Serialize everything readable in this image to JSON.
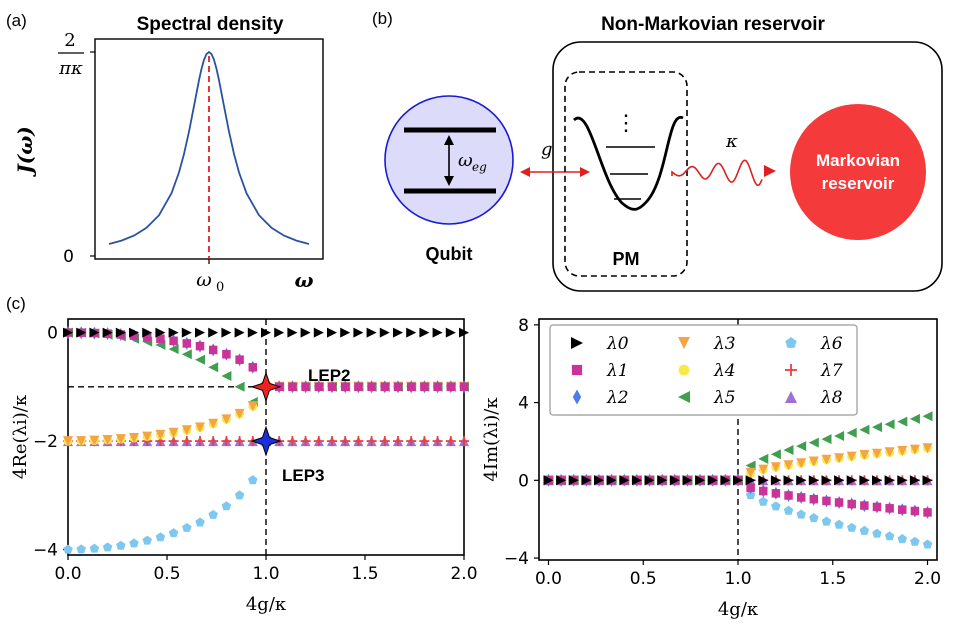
{
  "panels": {
    "a": {
      "label": "(a)",
      "title": "Spectral density",
      "ylabel": "J(ω)",
      "ytick_top_num": "2",
      "ytick_top_den": "πκ",
      "ytick_zero": "0",
      "xtick_center": "ω",
      "xtick_center_sub": "0",
      "xlabel": "ω"
    },
    "b": {
      "label": "(b)",
      "title": "Non-Markovian reservoir",
      "qubit_label": "Qubit",
      "qubit_freq": "ω",
      "qubit_freq_sub": "eg",
      "coupling": "g",
      "decay": "κ",
      "pm_label": "PM",
      "pm_dots": "⋮",
      "markov_line1": "Markovian",
      "markov_line2": "reservoir"
    },
    "c": {
      "label": "(c)",
      "lep2": "LEP2",
      "lep3": "LEP3"
    }
  },
  "colors": {
    "lambda0": "#000000",
    "lambda1": "#cc3399",
    "lambda2": "#4a7fe6",
    "lambda3": "#f5a442",
    "lambda4": "#f7e94a",
    "lambda5": "#3f9e4f",
    "lambda6": "#7ec8f0",
    "lambda7": "#e8403c",
    "lambda8": "#a070d8",
    "curve_a": "#2a52a3",
    "qubit_fill": "#dcdcfa",
    "qubit_edge": "#1a1ad6",
    "markov_fill": "#f43a3a",
    "arrow_red": "#e02020"
  },
  "chart_data": [
    {
      "type": "line",
      "panel": "a",
      "title": "Spectral density",
      "ylabel": "J(ω)",
      "xlabel": "ω",
      "x": [
        -4,
        -3.5,
        -3,
        -2.5,
        -2,
        -1.5,
        -1.2,
        -1,
        -0.8,
        -0.6,
        -0.4,
        -0.3,
        -0.2,
        -0.1,
        0,
        0.1,
        0.2,
        0.3,
        0.4,
        0.6,
        0.8,
        1,
        1.2,
        1.5,
        2,
        2.5,
        3,
        3.5,
        4
      ],
      "y": [
        0.0588,
        0.0755,
        0.1,
        0.138,
        0.2,
        0.308,
        0.41,
        0.5,
        0.61,
        0.735,
        0.862,
        0.917,
        0.962,
        0.99,
        1.0,
        0.99,
        0.962,
        0.917,
        0.862,
        0.735,
        0.61,
        0.5,
        0.41,
        0.308,
        0.2,
        0.138,
        0.1,
        0.0755,
        0.0588
      ],
      "y_unit_note": "J(ω) in units of 2/(πκ); x in units of κ/2 relative to ω0",
      "marker_line": "ω0"
    },
    {
      "type": "scatter",
      "panel": "c-left",
      "xlabel": "4g/κ",
      "ylabel": "4Re(λi)/κ",
      "xlim": [
        0,
        2.0
      ],
      "ylim": [
        -4.1,
        0.25
      ],
      "xticks": [
        "0.0",
        "0.5",
        "1.0",
        "1.5",
        "2.0"
      ],
      "yticks": [
        "0",
        "−2",
        "−4"
      ],
      "x": [
        0.0,
        0.0667,
        0.1333,
        0.2,
        0.2667,
        0.3333,
        0.4,
        0.4667,
        0.5333,
        0.6,
        0.6667,
        0.7333,
        0.8,
        0.8667,
        0.9333,
        1.0,
        1.0667,
        1.1333,
        1.2,
        1.2667,
        1.3333,
        1.4,
        1.4667,
        1.5333,
        1.6,
        1.6667,
        1.7333,
        1.8,
        1.8667,
        1.9333,
        2.0
      ],
      "series": [
        {
          "name": "λ0",
          "values": [
            0,
            0,
            0,
            0,
            0,
            0,
            0,
            0,
            0,
            0,
            0,
            0,
            0,
            0,
            0,
            0,
            0,
            0,
            0,
            0,
            0,
            0,
            0,
            0,
            0,
            0,
            0,
            0,
            0,
            0,
            0
          ]
        },
        {
          "name": "λ1",
          "values": [
            0,
            -0.002,
            -0.009,
            -0.02,
            -0.036,
            -0.057,
            -0.083,
            -0.114,
            -0.152,
            -0.2,
            -0.25,
            -0.32,
            -0.4,
            -0.5,
            -0.64,
            -1,
            -1,
            -1,
            -1,
            -1,
            -1,
            -1,
            -1,
            -1,
            -1,
            -1,
            -1,
            -1,
            -1,
            -1,
            -1
          ]
        },
        {
          "name": "λ2",
          "values": [
            0,
            -0.002,
            -0.009,
            -0.02,
            -0.036,
            -0.057,
            -0.083,
            -0.114,
            -0.152,
            -0.2,
            -0.25,
            -0.32,
            -0.4,
            -0.5,
            -0.64,
            -1,
            -1,
            -1,
            -1,
            -1,
            -1,
            -1,
            -1,
            -1,
            -1,
            -1,
            -1,
            -1,
            -1,
            -1,
            -1
          ]
        },
        {
          "name": "λ3",
          "values": [
            -2,
            -2,
            -1.991,
            -1.98,
            -1.964,
            -1.943,
            -1.917,
            -1.886,
            -1.848,
            -1.8,
            -1.75,
            -1.68,
            -1.6,
            -1.5,
            -1.36,
            -1,
            -1,
            -1,
            -1,
            -1,
            -1,
            -1,
            -1,
            -1,
            -1,
            -1,
            -1,
            -1,
            -1,
            -1,
            -1
          ]
        },
        {
          "name": "λ4",
          "values": [
            -2,
            -2,
            -1.991,
            -1.98,
            -1.964,
            -1.943,
            -1.917,
            -1.886,
            -1.848,
            -1.8,
            -1.75,
            -1.68,
            -1.6,
            -1.5,
            -1.36,
            -1,
            -1,
            -1,
            -1,
            -1,
            -1,
            -1,
            -1,
            -1,
            -1,
            -1,
            -1,
            -1,
            -1,
            -1,
            -1
          ]
        },
        {
          "name": "λ5",
          "values": [
            0,
            -0.004,
            -0.018,
            -0.04,
            -0.072,
            -0.114,
            -0.166,
            -0.228,
            -0.304,
            -0.4,
            -0.5,
            -0.64,
            -0.8,
            -1.0,
            -1.28,
            -2,
            -1,
            -1,
            -1,
            -1,
            -1,
            -1,
            -1,
            -1,
            -1,
            -1,
            -1,
            -1,
            -1,
            -1,
            -1
          ]
        },
        {
          "name": "λ6",
          "values": [
            -4,
            -3.996,
            -3.982,
            -3.96,
            -3.928,
            -3.886,
            -3.834,
            -3.772,
            -3.696,
            -3.6,
            -3.5,
            -3.36,
            -3.2,
            -3.0,
            -2.72,
            -2,
            -1,
            -1,
            -1,
            -1,
            -1,
            -1,
            -1,
            -1,
            -1,
            -1,
            -1,
            -1,
            -1,
            -1,
            -1
          ]
        },
        {
          "name": "λ7",
          "values": [
            -2,
            -2,
            -2,
            -2,
            -2,
            -2,
            -2,
            -2,
            -2,
            -2,
            -2,
            -2,
            -2,
            -2,
            -2,
            -2,
            -2,
            -2,
            -2,
            -2,
            -2,
            -2,
            -2,
            -2,
            -2,
            -2,
            -2,
            -2,
            -2,
            -2,
            -2
          ]
        },
        {
          "name": "λ8",
          "values": [
            -2,
            -2,
            -2,
            -2,
            -2,
            -2,
            -2,
            -2,
            -2,
            -2,
            -2,
            -2,
            -2,
            -2,
            -2,
            -2,
            -2,
            -2,
            -2,
            -2,
            -2,
            -2,
            -2,
            -2,
            -2,
            -2,
            -2,
            -2,
            -2,
            -2,
            -2
          ]
        }
      ],
      "special_points": [
        {
          "label": "LEP2",
          "x": 1.0,
          "y": -1.0
        },
        {
          "label": "LEP3",
          "x": 1.0,
          "y": -2.0
        }
      ],
      "reference_lines": {
        "vertical_x": 1.0,
        "horizontal_y": -1.0
      }
    },
    {
      "type": "scatter",
      "panel": "c-right",
      "xlabel": "4g/κ",
      "ylabel": "4Im(λi)/κ",
      "xlim": [
        -0.05,
        2.05
      ],
      "ylim": [
        -4.1,
        8.3
      ],
      "xticks": [
        "0.0",
        "0.5",
        "1.0",
        "1.5",
        "2.0"
      ],
      "yticks": [
        "8",
        "4",
        "0",
        "−4"
      ],
      "legend": "top-left",
      "x": [
        0.0,
        0.0667,
        0.1333,
        0.2,
        0.2667,
        0.3333,
        0.4,
        0.4667,
        0.5333,
        0.6,
        0.6667,
        0.7333,
        0.8,
        0.8667,
        0.9333,
        1.0,
        1.0667,
        1.1333,
        1.2,
        1.2667,
        1.3333,
        1.4,
        1.4667,
        1.5333,
        1.6,
        1.6667,
        1.7333,
        1.8,
        1.8667,
        1.9333,
        2.0
      ],
      "series": [
        {
          "name": "λ0",
          "values": [
            0,
            0,
            0,
            0,
            0,
            0,
            0,
            0,
            0,
            0,
            0,
            0,
            0,
            0,
            0,
            0,
            0,
            0,
            0,
            0,
            0,
            0,
            0,
            0,
            0,
            0,
            0,
            0,
            0,
            0,
            0
          ]
        },
        {
          "name": "λ1",
          "values": [
            0,
            0,
            0,
            0,
            0,
            0,
            0,
            0,
            0,
            0,
            0,
            0,
            0,
            0,
            0,
            0,
            -0.38,
            -0.55,
            -0.67,
            -0.78,
            -0.88,
            -0.97,
            -1.06,
            -1.14,
            -1.22,
            -1.3,
            -1.37,
            -1.44,
            -1.51,
            -1.58,
            -1.65
          ]
        },
        {
          "name": "λ2",
          "values": [
            0,
            0,
            0,
            0,
            0,
            0,
            0,
            0,
            0,
            0,
            0,
            0,
            0,
            0,
            0,
            0,
            -0.38,
            -0.55,
            -0.67,
            -0.78,
            -0.88,
            -0.97,
            -1.06,
            -1.14,
            -1.22,
            -1.3,
            -1.37,
            -1.44,
            -1.51,
            -1.58,
            -1.65
          ]
        },
        {
          "name": "λ3",
          "values": [
            0,
            0,
            0,
            0,
            0,
            0,
            0,
            0,
            0,
            0,
            0,
            0,
            0,
            0,
            0,
            0,
            0.38,
            0.55,
            0.67,
            0.78,
            0.88,
            0.97,
            1.06,
            1.14,
            1.22,
            1.3,
            1.37,
            1.44,
            1.51,
            1.58,
            1.65
          ]
        },
        {
          "name": "λ4",
          "values": [
            0,
            0,
            0,
            0,
            0,
            0,
            0,
            0,
            0,
            0,
            0,
            0,
            0,
            0,
            0,
            0,
            0.38,
            0.55,
            0.67,
            0.78,
            0.88,
            0.97,
            1.06,
            1.14,
            1.22,
            1.3,
            1.37,
            1.44,
            1.51,
            1.58,
            1.65
          ]
        },
        {
          "name": "λ5",
          "values": [
            0,
            0,
            0,
            0,
            0,
            0,
            0,
            0,
            0,
            0,
            0,
            0,
            0,
            0,
            0,
            0,
            0.76,
            1.1,
            1.34,
            1.56,
            1.76,
            1.94,
            2.12,
            2.28,
            2.44,
            2.6,
            2.74,
            2.88,
            3.02,
            3.16,
            3.3
          ]
        },
        {
          "name": "λ6",
          "values": [
            0,
            0,
            0,
            0,
            0,
            0,
            0,
            0,
            0,
            0,
            0,
            0,
            0,
            0,
            0,
            0,
            -0.76,
            -1.1,
            -1.34,
            -1.56,
            -1.76,
            -1.94,
            -2.12,
            -2.28,
            -2.44,
            -2.6,
            -2.74,
            -2.88,
            -3.02,
            -3.16,
            -3.3
          ]
        },
        {
          "name": "λ7",
          "values": [
            0,
            0,
            0,
            0,
            0,
            0,
            0,
            0,
            0,
            0,
            0,
            0,
            0,
            0,
            0,
            0,
            0,
            0,
            0,
            0,
            0,
            0,
            0,
            0,
            0,
            0,
            0,
            0,
            0,
            0,
            0
          ]
        },
        {
          "name": "λ8",
          "values": [
            0,
            0,
            0,
            0,
            0,
            0,
            0,
            0,
            0,
            0,
            0,
            0,
            0,
            0,
            0,
            0,
            0,
            0,
            0,
            0,
            0,
            0,
            0,
            0,
            0,
            0,
            0,
            0,
            0,
            0,
            0
          ]
        }
      ],
      "reference_lines": {
        "vertical_x": 1.0
      }
    }
  ]
}
